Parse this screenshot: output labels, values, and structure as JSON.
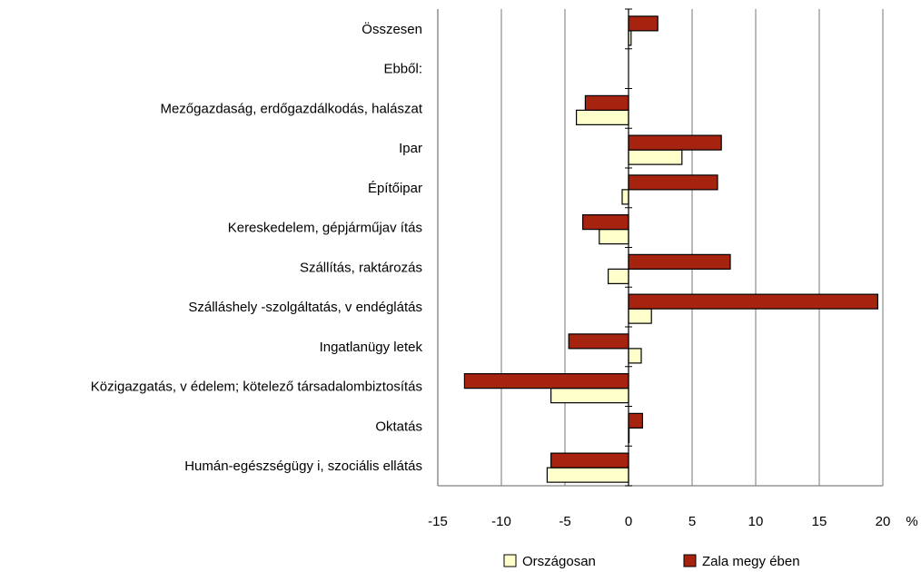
{
  "chart_data": {
    "type": "bar",
    "orientation": "horizontal",
    "categories": [
      "Összesen",
      "Ebből:",
      "Mezőgazdaság, erdőgazdálkodás, halászat",
      "Ipar",
      "Építőipar",
      "Kereskedelem, gépjárműjav ítás",
      "Szállítás, raktározás",
      "Szálláshely -szolgáltatás, v endéglátás",
      "Ingatlanügy letek",
      "Közigazgatás, v édelem; kötelező társadalombiztosítás",
      "Oktatás",
      "Humán-egészségügy i, szociális ellátás"
    ],
    "series": [
      {
        "name": "Országosan",
        "color": "#ffffcc",
        "values": [
          0.2,
          null,
          -4.1,
          4.2,
          -0.5,
          -2.3,
          -1.6,
          1.8,
          1.0,
          -6.1,
          0.0,
          -6.4
        ]
      },
      {
        "name": "Zala megy ében",
        "color": "#a5230f",
        "values": [
          2.3,
          null,
          -3.4,
          7.3,
          7.0,
          -3.6,
          8.0,
          19.6,
          -4.7,
          -12.9,
          1.1,
          -6.1
        ]
      }
    ],
    "xlim": [
      -15,
      20
    ],
    "xticks": [
      "-15",
      "-10",
      "-5",
      "0",
      "5",
      "10",
      "15",
      "20"
    ],
    "x_unit": "%",
    "grid": "vertical",
    "legend_position": "bottom"
  }
}
